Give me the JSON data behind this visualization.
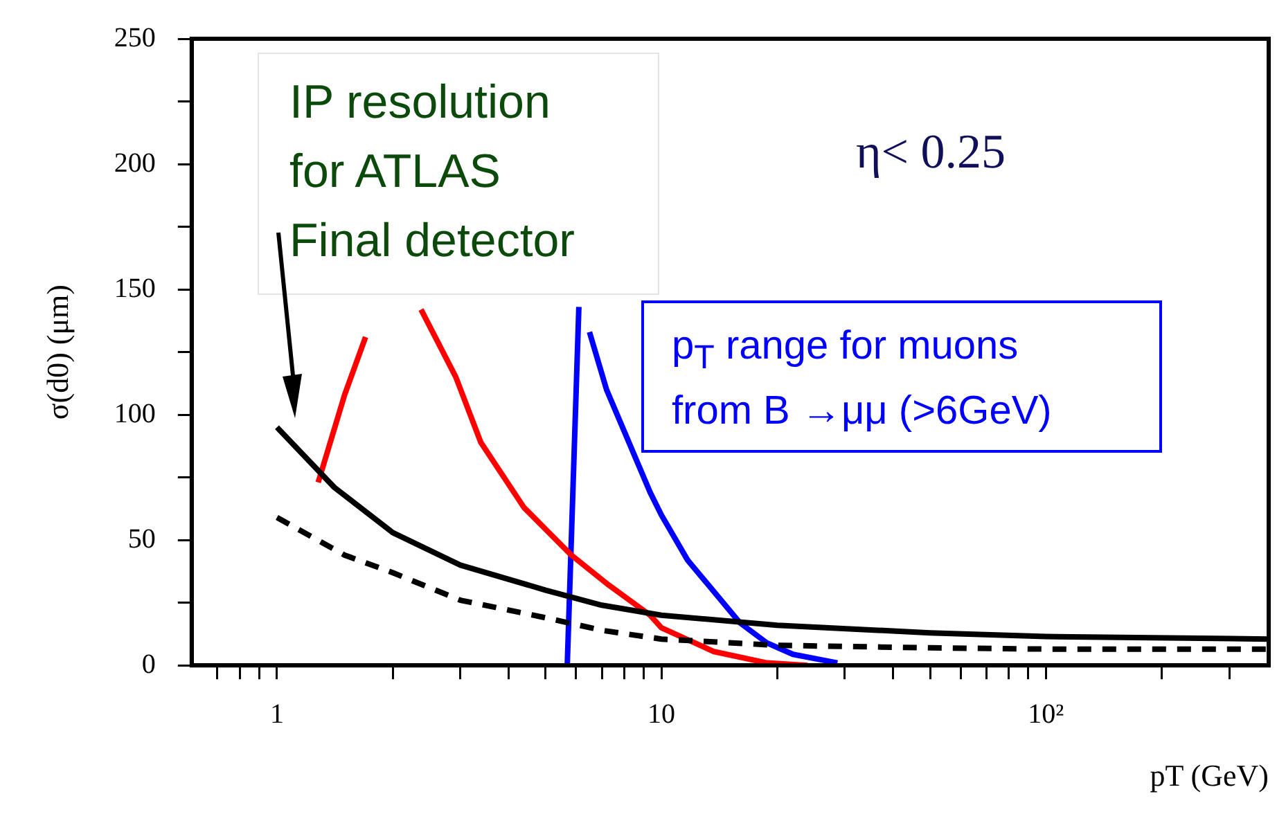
{
  "chart_data": {
    "type": "line",
    "xlabel": "pT (GeV)",
    "ylabel": "σ(d0) (μm)",
    "log": "x",
    "xlim": [
      0.6,
      380
    ],
    "ylim": [
      0,
      250
    ],
    "xticks": [
      {
        "value": 0.7,
        "label": null
      },
      {
        "value": 0.8,
        "label": null
      },
      {
        "value": 0.9,
        "label": null
      },
      1,
      {
        "value": 2,
        "label": null
      },
      {
        "value": 3,
        "label": null
      },
      {
        "value": 4,
        "label": null
      },
      {
        "value": 5,
        "label": null
      },
      {
        "value": 6,
        "label": null
      },
      {
        "value": 7,
        "label": null
      },
      {
        "value": 8,
        "label": null
      },
      {
        "value": 9,
        "label": null
      },
      10,
      {
        "value": 20,
        "label": null
      },
      {
        "value": 30,
        "label": null
      },
      {
        "value": 40,
        "label": null
      },
      {
        "value": 50,
        "label": null
      },
      {
        "value": 60,
        "label": null
      },
      {
        "value": 70,
        "label": null
      },
      {
        "value": 80,
        "label": null
      },
      {
        "value": 90,
        "label": null
      },
      {
        "value": 100,
        "label": "10²"
      },
      {
        "value": 200,
        "label": null
      },
      {
        "value": 300,
        "label": null
      }
    ],
    "yticks": [
      0,
      {
        "value": 25,
        "label": null
      },
      50,
      {
        "value": 75,
        "label": null
      },
      100,
      {
        "value": 125,
        "label": null
      },
      150,
      {
        "value": 175,
        "label": null
      },
      200,
      {
        "value": 225,
        "label": null
      },
      250
    ],
    "grid": false,
    "legend": false,
    "marker": "none",
    "series": [
      {
        "color": "#000000",
        "line_style": "solid",
        "x": [
          1,
          1.41,
          2,
          3,
          5,
          7,
          10,
          20,
          50,
          100,
          380
        ],
        "values": [
          95,
          71,
          53,
          40,
          30,
          24,
          20,
          16,
          13,
          11.5,
          10.5
        ]
      },
      {
        "color": "#000000",
        "line_style": "dashed",
        "x": [
          1,
          1.5,
          2,
          3,
          5,
          7,
          10,
          20,
          50,
          100,
          380
        ],
        "values": [
          59,
          44,
          37,
          26,
          19,
          14,
          10.5,
          8,
          7,
          6.5,
          6.5
        ]
      },
      {
        "color": "#ff0000",
        "line_style": "solid",
        "x": [
          1.28,
          1.5,
          1.7,
          1.96,
          2.37,
          2.92,
          3.39,
          4.39,
          5.83,
          7.3,
          9.35,
          10,
          13.7,
          18.8,
          24
        ],
        "values": [
          73,
          108,
          131,
          null,
          142,
          115,
          89,
          63,
          44,
          32,
          20,
          15,
          5.5,
          1,
          0
        ]
      },
      {
        "color": "#0000ff",
        "line_style": "solid",
        "x": [
          5.69,
          6.1,
          6.3,
          6.5,
          7.2,
          9.35,
          10,
          11.7,
          16,
          18.8,
          22,
          28.7
        ],
        "values": [
          0,
          143,
          null,
          133,
          110,
          69,
          60,
          42,
          17,
          9,
          4.4,
          1
        ]
      }
    ],
    "annotations": [
      "IP resolution\nfor ATLAS\nFinal detector",
      "η< 0.25",
      "p$_{T}$ range for muons\nfrom B →μμ (>6GeV)"
    ]
  }
}
